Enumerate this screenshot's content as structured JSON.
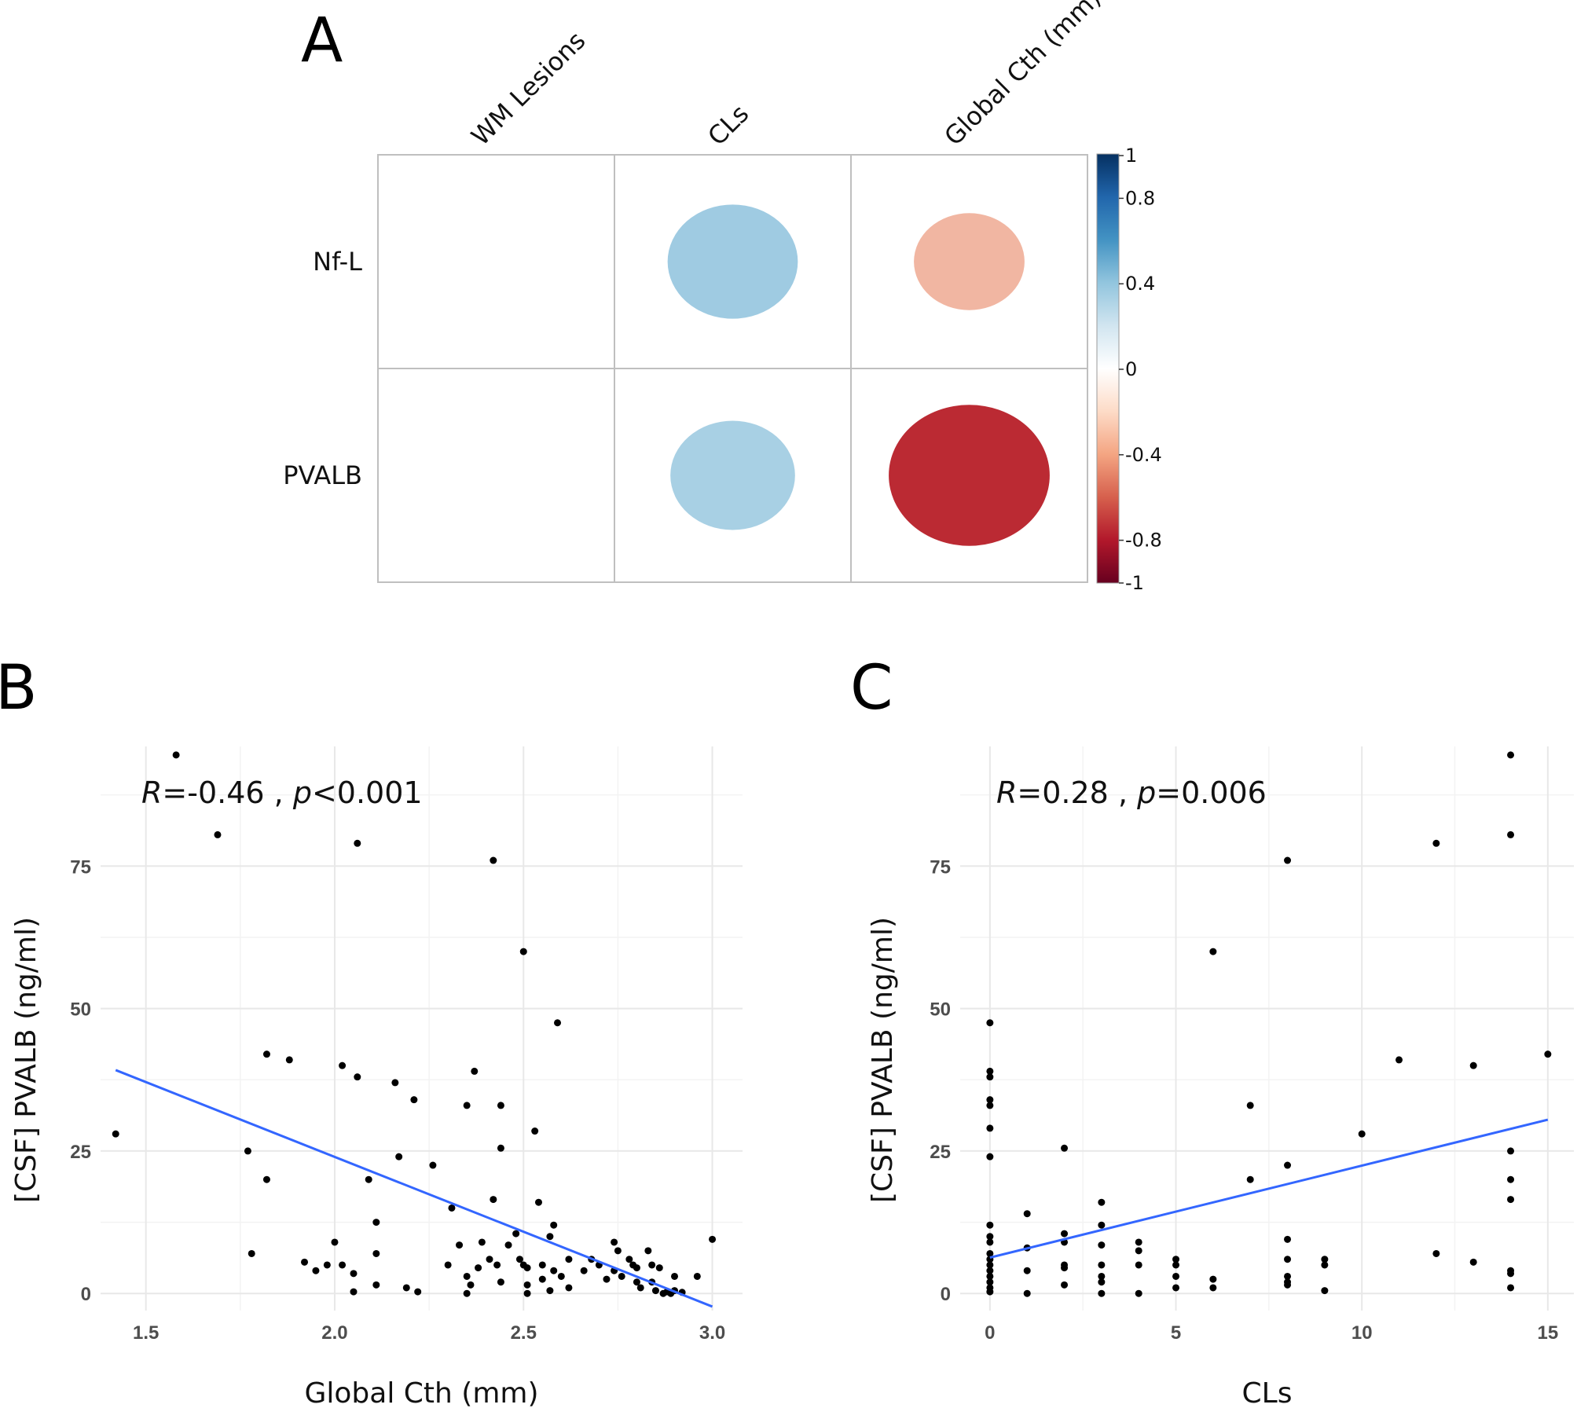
{
  "panels": {
    "a": "A",
    "b": "B",
    "c": "C"
  },
  "chart_data": [
    {
      "type": "heatmap",
      "rows": [
        "Nf-L",
        "PVALB"
      ],
      "columns": [
        "WM Lesions",
        "CLs",
        "Global Cth (mm)"
      ],
      "values": [
        [
          null,
          0.36,
          -0.26
        ],
        [
          null,
          0.33,
          -0.55
        ]
      ],
      "colorbar": {
        "min": -1,
        "max": 1,
        "ticks": [
          "1",
          "0.8",
          "0.4",
          "0",
          "-0.4",
          "-0.8",
          "-1"
        ],
        "tick_values": [
          1,
          0.8,
          0.4,
          0,
          -0.4,
          -0.8,
          -1
        ]
      },
      "colors": {
        "neg": "#67001f",
        "neg_mid": "#d6604d",
        "neg_light": "#fddbc7",
        "zero": "#ffffff",
        "pos_light": "#d1e5f0",
        "pos_mid": "#4393c3",
        "pos": "#053061"
      }
    },
    {
      "type": "scatter",
      "xlabel": "Global Cth (mm)",
      "ylabel": "[CSF] PVALB (ng/ml)",
      "xlim": [
        1.38,
        3.08
      ],
      "ylim": [
        -3,
        96
      ],
      "xticks": [
        1.5,
        2.0,
        2.5,
        3.0
      ],
      "xtick_labels": [
        "1.5",
        "2.0",
        "2.5",
        "3.0"
      ],
      "yticks": [
        0,
        25,
        50,
        75
      ],
      "ytick_labels": [
        "0",
        "25",
        "50",
        "75"
      ],
      "annotation": {
        "r_label": "R",
        "r_value": "=-0.46",
        "sep": " , ",
        "p_label": "p",
        "p_value": "<0.001"
      },
      "fit": {
        "x": [
          1.42,
          3.0
        ],
        "y": [
          39.2,
          -2.3
        ],
        "color": "#3366ff"
      },
      "points": [
        [
          1.58,
          94.5
        ],
        [
          1.69,
          80.5
        ],
        [
          2.06,
          79
        ],
        [
          2.42,
          76
        ],
        [
          2.5,
          60
        ],
        [
          2.59,
          47.5
        ],
        [
          1.42,
          28
        ],
        [
          1.77,
          25
        ],
        [
          1.82,
          42
        ],
        [
          1.88,
          41
        ],
        [
          1.82,
          20
        ],
        [
          1.78,
          7
        ],
        [
          1.92,
          5.5
        ],
        [
          1.95,
          4
        ],
        [
          1.98,
          5
        ],
        [
          2.02,
          5
        ],
        [
          2.0,
          9
        ],
        [
          2.05,
          3.5
        ],
        [
          2.05,
          0.3
        ],
        [
          2.02,
          40
        ],
        [
          2.06,
          38
        ],
        [
          2.16,
          37
        ],
        [
          2.21,
          34
        ],
        [
          2.17,
          24
        ],
        [
          2.09,
          20
        ],
        [
          2.11,
          12.5
        ],
        [
          2.11,
          7
        ],
        [
          2.11,
          1.5
        ],
        [
          2.19,
          1
        ],
        [
          2.22,
          0.3
        ],
        [
          2.26,
          22.5
        ],
        [
          2.31,
          15
        ],
        [
          2.3,
          5
        ],
        [
          2.35,
          33
        ],
        [
          2.37,
          39
        ],
        [
          2.42,
          16.5
        ],
        [
          2.44,
          33
        ],
        [
          2.44,
          25.5
        ],
        [
          2.33,
          8.5
        ],
        [
          2.35,
          3
        ],
        [
          2.36,
          1.5
        ],
        [
          2.35,
          0
        ],
        [
          2.38,
          4.5
        ],
        [
          2.39,
          9
        ],
        [
          2.41,
          6
        ],
        [
          2.43,
          5
        ],
        [
          2.44,
          2
        ],
        [
          2.46,
          8.5
        ],
        [
          2.48,
          10.5
        ],
        [
          2.49,
          6
        ],
        [
          2.5,
          5
        ],
        [
          2.51,
          4.5
        ],
        [
          2.51,
          1.5
        ],
        [
          2.51,
          0
        ],
        [
          2.53,
          28.5
        ],
        [
          2.54,
          16
        ],
        [
          2.55,
          5
        ],
        [
          2.55,
          2.5
        ],
        [
          2.57,
          10
        ],
        [
          2.58,
          12
        ],
        [
          2.58,
          4
        ],
        [
          2.57,
          0.5
        ],
        [
          2.6,
          3
        ],
        [
          2.62,
          6
        ],
        [
          2.62,
          1
        ],
        [
          2.66,
          4
        ],
        [
          2.68,
          6
        ],
        [
          2.7,
          5
        ],
        [
          2.72,
          2.5
        ],
        [
          2.74,
          9
        ],
        [
          2.75,
          7.5
        ],
        [
          2.74,
          4
        ],
        [
          2.76,
          3
        ],
        [
          2.78,
          6
        ],
        [
          2.79,
          5
        ],
        [
          2.8,
          4.5
        ],
        [
          2.8,
          2
        ],
        [
          2.81,
          1
        ],
        [
          2.83,
          7.5
        ],
        [
          2.84,
          5
        ],
        [
          2.84,
          2
        ],
        [
          2.85,
          0.5
        ],
        [
          2.86,
          4.5
        ],
        [
          2.87,
          0
        ],
        [
          2.88,
          0.3
        ],
        [
          2.89,
          0
        ],
        [
          2.9,
          3
        ],
        [
          2.9,
          0.5
        ],
        [
          2.92,
          0.2
        ],
        [
          2.96,
          3
        ],
        [
          3.0,
          9.5
        ]
      ]
    },
    {
      "type": "scatter",
      "xlabel": "CLs",
      "ylabel": "[CSF] PVALB (ng/ml)",
      "xlim": [
        -0.8,
        15.7
      ],
      "ylim": [
        -3,
        96
      ],
      "xticks": [
        0,
        5,
        10,
        15
      ],
      "xtick_labels": [
        "0",
        "5",
        "10",
        "15"
      ],
      "yticks": [
        0,
        25,
        50,
        75
      ],
      "ytick_labels": [
        "0",
        "25",
        "50",
        "75"
      ],
      "annotation": {
        "r_label": "R",
        "r_value": "=0.28",
        "sep": " , ",
        "p_label": "p",
        "p_value": "=0.006"
      },
      "fit": {
        "x": [
          0,
          15
        ],
        "y": [
          6.3,
          30.5
        ],
        "color": "#3366ff"
      },
      "points": [
        [
          0,
          47.5
        ],
        [
          0,
          39
        ],
        [
          0,
          38
        ],
        [
          0,
          34
        ],
        [
          0,
          33
        ],
        [
          0,
          29
        ],
        [
          0,
          24
        ],
        [
          0,
          12
        ],
        [
          0,
          10
        ],
        [
          0,
          9
        ],
        [
          0,
          7
        ],
        [
          0,
          6
        ],
        [
          0,
          5
        ],
        [
          0,
          4
        ],
        [
          0,
          3
        ],
        [
          0,
          2
        ],
        [
          0,
          1
        ],
        [
          0,
          0.3
        ],
        [
          1,
          14
        ],
        [
          1,
          8
        ],
        [
          1,
          4
        ],
        [
          1,
          0
        ],
        [
          2,
          25.5
        ],
        [
          2,
          10.5
        ],
        [
          2,
          9
        ],
        [
          2,
          5
        ],
        [
          2,
          4.5
        ],
        [
          2,
          1.5
        ],
        [
          3,
          16
        ],
        [
          3,
          12
        ],
        [
          3,
          8.5
        ],
        [
          3,
          5
        ],
        [
          3,
          3
        ],
        [
          3,
          2
        ],
        [
          3,
          0
        ],
        [
          4,
          9
        ],
        [
          4,
          7.5
        ],
        [
          4,
          5
        ],
        [
          4,
          0
        ],
        [
          5,
          6
        ],
        [
          5,
          5
        ],
        [
          5,
          3
        ],
        [
          5,
          1
        ],
        [
          6,
          60
        ],
        [
          6,
          2.5
        ],
        [
          6,
          1
        ],
        [
          7,
          33
        ],
        [
          7,
          20
        ],
        [
          8,
          76
        ],
        [
          8,
          22.5
        ],
        [
          8,
          9.5
        ],
        [
          8,
          6
        ],
        [
          8,
          3
        ],
        [
          8,
          2
        ],
        [
          8,
          1.5
        ],
        [
          9,
          6
        ],
        [
          9,
          5
        ],
        [
          9,
          0.5
        ],
        [
          10,
          28
        ],
        [
          11,
          41
        ],
        [
          12,
          79
        ],
        [
          12,
          7
        ],
        [
          13,
          40
        ],
        [
          13,
          5.5
        ],
        [
          14,
          94.5
        ],
        [
          14,
          80.5
        ],
        [
          14,
          25
        ],
        [
          14,
          20
        ],
        [
          14,
          16.5
        ],
        [
          14,
          4
        ],
        [
          14,
          3.5
        ],
        [
          14,
          1
        ],
        [
          15,
          42
        ]
      ]
    }
  ]
}
